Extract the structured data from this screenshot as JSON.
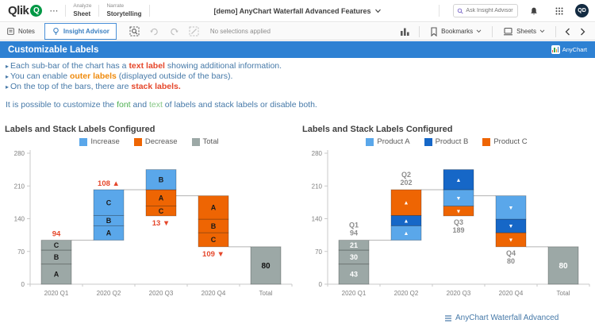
{
  "topbar": {
    "logo_text": "Qlik",
    "logo_q": "Q",
    "more_menu": "⋯",
    "nav": [
      {
        "small": "Analyze",
        "big": "Sheet"
      },
      {
        "small": "Narrate",
        "big": "Storytelling"
      }
    ],
    "app_title": "[demo] AnyChart Waterfall Advanced Features",
    "search_placeholder": "Ask Insight Advisor",
    "avatar_initials": "QD"
  },
  "toolbar": {
    "notes_label": "Notes",
    "insight_advisor_label": "Insight Advisor",
    "selections_status": "No selections applied",
    "bookmarks_label": "Bookmarks",
    "sheets_label": "Sheets"
  },
  "banner": {
    "title": "Customizable Labels",
    "badge_label": "AnyChart"
  },
  "intro": {
    "bullets": [
      {
        "parts": [
          {
            "text": "Each sub-bar of the chart has a "
          },
          {
            "text": "text label",
            "color": "#e5472b",
            "bold": true
          },
          {
            "text": " showing additional information."
          }
        ]
      },
      {
        "parts": [
          {
            "text": "You can enable "
          },
          {
            "text": "outer labels",
            "color": "#ef8a0c",
            "bold": true
          },
          {
            "text": " (displayed outside of the bars)."
          }
        ]
      },
      {
        "parts": [
          {
            "text": "On the top of the bars, there are "
          },
          {
            "text": "stack labels.",
            "color": "#e5472b",
            "bold": true
          }
        ]
      }
    ],
    "note": {
      "parts": [
        {
          "text": "It is possible to customize the "
        },
        {
          "text": "font",
          "color": "#4caf50"
        },
        {
          "text": " and "
        },
        {
          "text": "text",
          "color": "#85c785"
        },
        {
          "text": " of labels and stack labels or disable both."
        }
      ]
    }
  },
  "footer_link": {
    "label": "AnyChart Waterfall Advanced"
  },
  "colors": {
    "banner_blue": "#2e81d3",
    "increase": "#5aa7ea",
    "decrease": "#ee6503",
    "total_gray": "#9ca8a6",
    "product_b_blue": "#1667c7",
    "stack_label_red": "#e5472b",
    "link_blue": "#4679a8"
  },
  "chart_data": [
    {
      "type": "waterfall",
      "title": "Labels and Stack Labels Configured",
      "legend": [
        {
          "label": "Increase",
          "color": "#5aa7ea"
        },
        {
          "label": "Decrease",
          "color": "#ee6503"
        },
        {
          "label": "Total",
          "color": "#9ca8a6"
        }
      ],
      "ylim": [
        0,
        280
      ],
      "y_ticks": [
        0,
        70,
        140,
        210,
        280
      ],
      "categories": [
        "2020 Q1",
        "2020 Q2",
        "2020 Q3",
        "2020 Q4",
        "Total"
      ],
      "bars": [
        {
          "category": "2020 Q1",
          "segments": [
            {
              "label": "A",
              "from": 0,
              "to": 43,
              "color": "#9ca8a6",
              "label_color": "#1a1a1a"
            },
            {
              "label": "B",
              "from": 43,
              "to": 73,
              "color": "#9ca8a6",
              "label_color": "#1a1a1a"
            },
            {
              "label": "C",
              "from": 73,
              "to": 94,
              "color": "#9ca8a6",
              "label_color": "#1a1a1a"
            }
          ],
          "stack_label": {
            "text": "94",
            "position": "above",
            "color": "#e5472b"
          }
        },
        {
          "category": "2020 Q2",
          "segments": [
            {
              "label": "A",
              "from": 94,
              "to": 125,
              "color": "#5aa7ea",
              "label_color": "#1a1a1a"
            },
            {
              "label": "B",
              "from": 125,
              "to": 147,
              "color": "#5aa7ea",
              "label_color": "#1a1a1a"
            },
            {
              "label": "C",
              "from": 147,
              "to": 202,
              "color": "#5aa7ea",
              "label_color": "#1a1a1a"
            }
          ],
          "stack_label": {
            "text": "108 ▲",
            "position": "above",
            "color": "#e5472b"
          }
        },
        {
          "category": "2020 Q3",
          "segments": [
            {
              "label": "C",
              "from": 146,
              "to": 167,
              "color": "#ee6503",
              "label_color": "#1a1a1a"
            },
            {
              "label": "A",
              "from": 167,
              "to": 202,
              "color": "#ee6503",
              "label_color": "#1a1a1a"
            },
            {
              "label": "B",
              "from": 202,
              "to": 245,
              "color": "#5aa7ea",
              "label_color": "#1a1a1a"
            }
          ],
          "stack_label": {
            "text": "13 ▼",
            "position": "below",
            "color": "#e5472b"
          }
        },
        {
          "category": "2020 Q4",
          "segments": [
            {
              "label": "C",
              "from": 80,
              "to": 110,
              "color": "#ee6503",
              "label_color": "#1a1a1a"
            },
            {
              "label": "B",
              "from": 110,
              "to": 139,
              "color": "#ee6503",
              "label_color": "#1a1a1a"
            },
            {
              "label": "A",
              "from": 139,
              "to": 189,
              "color": "#ee6503",
              "label_color": "#1a1a1a"
            }
          ],
          "stack_label": {
            "text": "109 ▼",
            "position": "below",
            "color": "#e5472b"
          }
        },
        {
          "category": "Total",
          "segments": [
            {
              "label": "",
              "from": 0,
              "to": 80,
              "color": "#9ca8a6"
            }
          ],
          "inner_label": {
            "text": "80",
            "color": "#111111"
          }
        }
      ],
      "connectors": [
        {
          "value": 94
        },
        {
          "value": 202
        },
        {
          "value": 189
        },
        {
          "value": 80
        }
      ]
    },
    {
      "type": "waterfall",
      "title": "Labels and Stack Labels Configured",
      "legend": [
        {
          "label": "Product A",
          "color": "#5aa7ea"
        },
        {
          "label": "Product B",
          "color": "#1667c7"
        },
        {
          "label": "Product C",
          "color": "#ee6503"
        }
      ],
      "ylim": [
        0,
        280
      ],
      "y_ticks": [
        0,
        70,
        140,
        210,
        280
      ],
      "categories": [
        "2020 Q1",
        "2020 Q2",
        "2020 Q3",
        "2020 Q4",
        "Total"
      ],
      "bars": [
        {
          "category": "2020 Q1",
          "segments": [
            {
              "label": "43",
              "from": 0,
              "to": 43,
              "color": "#9ca8a6",
              "label_color": "#ffffff"
            },
            {
              "label": "30",
              "from": 43,
              "to": 73,
              "color": "#9ca8a6",
              "label_color": "#ffffff"
            },
            {
              "label": "21",
              "from": 73,
              "to": 94,
              "color": "#9ca8a6",
              "label_color": "#ffffff"
            }
          ],
          "outer_label": {
            "lines": [
              "Q1",
              "94"
            ],
            "position": "above"
          }
        },
        {
          "category": "2020 Q2",
          "segments": [
            {
              "label": "▲",
              "from": 94,
              "to": 125,
              "color": "#5aa7ea",
              "label_color": "#ffffff"
            },
            {
              "label": "▲",
              "from": 125,
              "to": 147,
              "color": "#1667c7",
              "label_color": "#ffffff"
            },
            {
              "label": "▲",
              "from": 147,
              "to": 202,
              "color": "#ee6503",
              "label_color": "#ffffff"
            }
          ],
          "outer_label": {
            "lines": [
              "Q2",
              "202"
            ],
            "position": "above"
          }
        },
        {
          "category": "2020 Q3",
          "segments": [
            {
              "label": "▼",
              "from": 146,
              "to": 167,
              "color": "#ee6503",
              "label_color": "#ffffff"
            },
            {
              "label": "▼",
              "from": 167,
              "to": 202,
              "color": "#5aa7ea",
              "label_color": "#ffffff"
            },
            {
              "label": "▲",
              "from": 202,
              "to": 245,
              "color": "#1667c7",
              "label_color": "#ffffff"
            }
          ],
          "outer_label": {
            "lines": [
              "Q3",
              "189"
            ],
            "position": "below"
          }
        },
        {
          "category": "2020 Q4",
          "segments": [
            {
              "label": "▼",
              "from": 80,
              "to": 110,
              "color": "#ee6503",
              "label_color": "#ffffff"
            },
            {
              "label": "▼",
              "from": 110,
              "to": 139,
              "color": "#1667c7",
              "label_color": "#ffffff"
            },
            {
              "label": "▼",
              "from": 139,
              "to": 189,
              "color": "#5aa7ea",
              "label_color": "#ffffff"
            }
          ],
          "outer_label": {
            "lines": [
              "Q4",
              "80"
            ],
            "position": "below"
          }
        },
        {
          "category": "Total",
          "segments": [
            {
              "label": "",
              "from": 0,
              "to": 80,
              "color": "#9ca8a6"
            }
          ],
          "inner_label": {
            "text": "80",
            "color": "#ffffff"
          }
        }
      ],
      "connectors": [
        {
          "value": 94
        },
        {
          "value": 202
        },
        {
          "value": 189
        },
        {
          "value": 80
        }
      ]
    }
  ]
}
